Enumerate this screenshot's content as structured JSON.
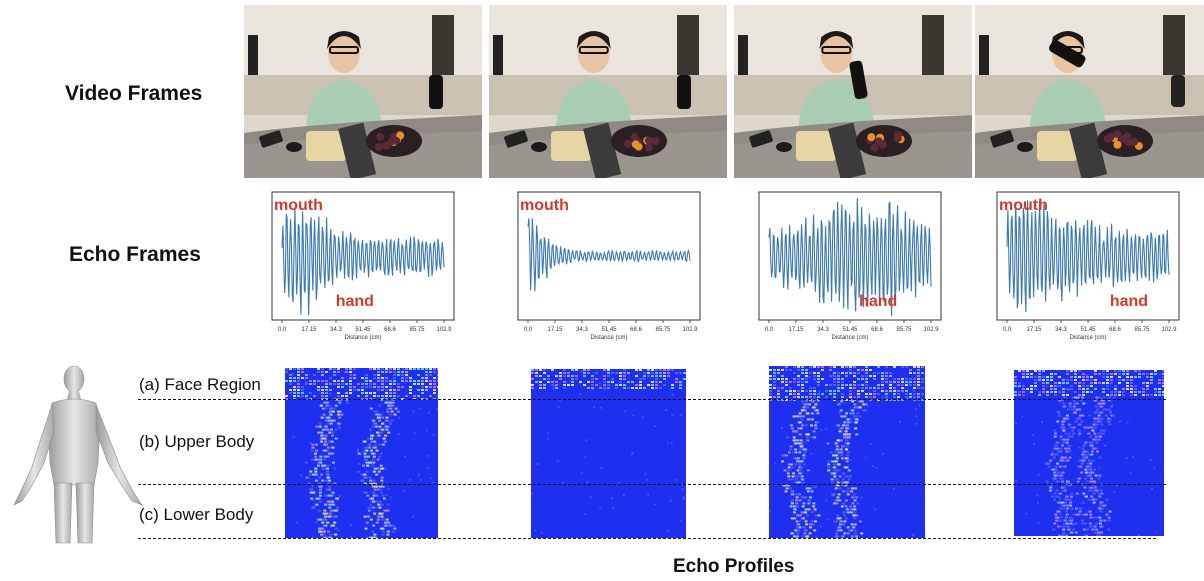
{
  "rows": {
    "video": "Video Frames",
    "echo": "Echo Frames"
  },
  "frames": [
    {
      "mouth": "mouth",
      "hand": "hand",
      "mouth_x": 0.13,
      "hand_x": 0.35
    },
    {
      "mouth": "mouth",
      "hand": "",
      "mouth_x": 0.14,
      "hand_x": 0.5
    },
    {
      "mouth": "",
      "hand": "hand",
      "mouth_x": 0.5,
      "hand_x": 0.55
    },
    {
      "mouth": "mouth",
      "hand": "hand",
      "mouth_x": 0.13,
      "hand_x": 0.62
    }
  ],
  "echo_axis": {
    "xlabel": "Distance (cm)",
    "ticks": [
      "0.0",
      "17.15",
      "34.3",
      "51.45",
      "68.6",
      "85.75",
      "102.9"
    ]
  },
  "regions": {
    "face": "(a) Face Region",
    "upper": "(b) Upper Body",
    "lower": "(c) Lower Body"
  },
  "footer": "Echo Profiles",
  "colors": {
    "signal": "#3a78b4",
    "annotation": "#d23a2a",
    "profile_bg": "#1f2ff0"
  }
}
